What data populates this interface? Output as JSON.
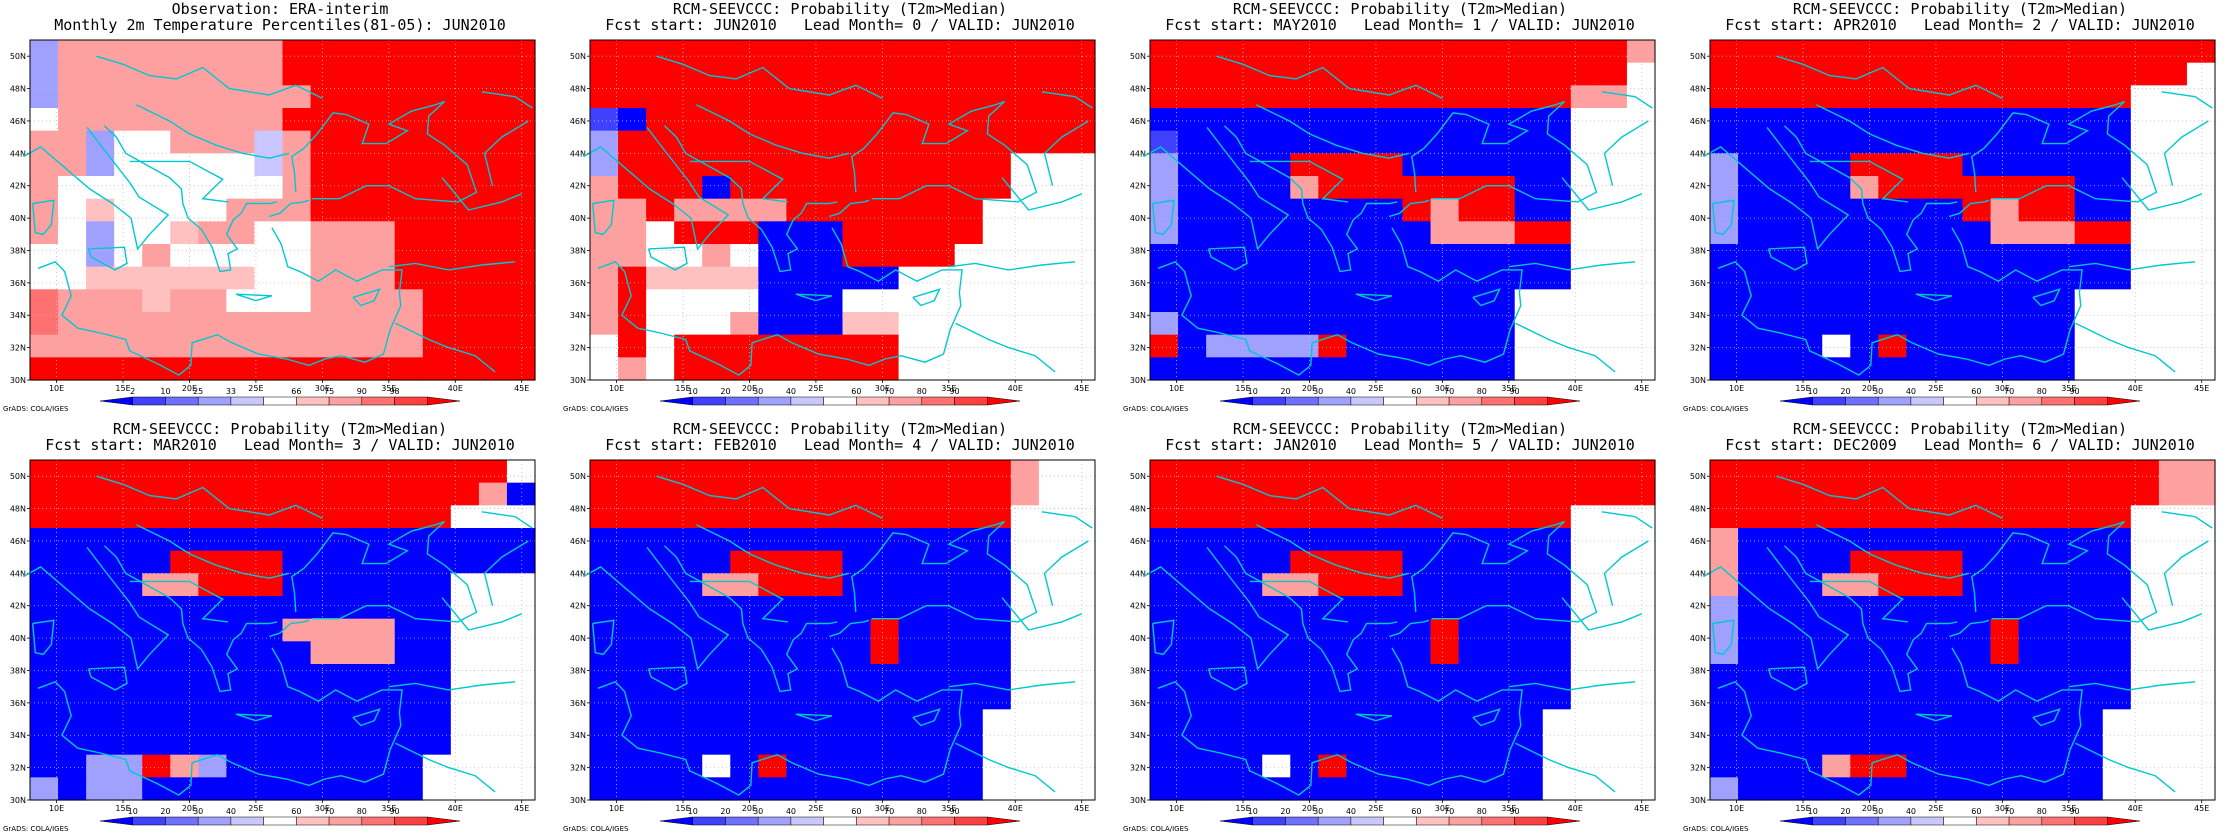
{
  "colors": {
    "deep_blue": "#0000ff",
    "mid_blue": "#4040ff",
    "blue_3": "#7070ff",
    "blue_2": "#a0a0ff",
    "light_blue": "#c8c8ff",
    "white": "#ffffff",
    "light_red": "#ffc0c0",
    "red_2": "#ffa0a0",
    "red_3": "#ff7070",
    "mid_red": "#ff4040",
    "deep_red": "#ff0000",
    "coast": "#00c8d0",
    "grid": "#c0c0c0"
  },
  "chart_data": [
    {
      "type": "heatmap",
      "title": "Observation: ERA-interim",
      "subtitle": "Monthly 2m Temperature Percentiles(81-05): JUN2010",
      "x_ticks": [
        "10E",
        "15E",
        "20E",
        "25E",
        "30E",
        "35E",
        "40E",
        "45E"
      ],
      "y_ticks": [
        "30N",
        "32N",
        "34N",
        "36N",
        "38N",
        "40N",
        "42N",
        "44N",
        "46N",
        "48N",
        "50N"
      ],
      "xlim": [
        8,
        46
      ],
      "ylim": [
        30,
        51
      ],
      "grid": "dotted",
      "colorbar_labels": [
        "2",
        "10",
        "25",
        "33",
        "66",
        "75",
        "90",
        "98"
      ],
      "credit": "GrADS: COLA/IGES",
      "rows_north_to_south": [
        "355555555999999999",
        "355555555999999999",
        "355555555599999999",
        "055555555999999999",
        "553005554599999999",
        "553000004599999999",
        "500000000599999999",
        "507000055599999999",
        "503007550055599999",
        "003050000055599999",
        "007777770055599999",
        "655575500055559999",
        "655555555555559999",
        "555555555555559999",
        "999999999999999999"
      ]
    },
    {
      "type": "heatmap",
      "title": "RCM-SEEVCCC: Probability (T2m>Median)",
      "subtitle": "Fcst start: JUN2010   Lead Month= 0 / VALID: JUN2010",
      "x_ticks": [
        "10E",
        "15E",
        "20E",
        "25E",
        "30E",
        "35E",
        "40E",
        "45E"
      ],
      "y_ticks": [
        "30N",
        "32N",
        "34N",
        "36N",
        "38N",
        "40N",
        "42N",
        "44N",
        "46N",
        "48N",
        "50N"
      ],
      "xlim": [
        8,
        46
      ],
      "ylim": [
        30,
        51
      ],
      "grid": "dotted",
      "colorbar_labels": [
        "10",
        "20",
        "30",
        "40",
        "60",
        "70",
        "80",
        "90"
      ],
      "credit": "GrADS: COLA/IGES",
      "rows_north_to_south": [
        "999999999999999999",
        "999999999999999999",
        "999999999999999999",
        "219999999999999999",
        "399999999999999999",
        "399999999999999000",
        "599919999999999000",
        "559555599999990000",
        "550999111999990000",
        "550050111999900000",
        "597777111110000000",
        "590000111000000000",
        "590005111770000000",
        "090999999990000000",
        "050999999990000000"
      ]
    },
    {
      "type": "heatmap",
      "title": "RCM-SEEVCCC: Probability (T2m>Median)",
      "subtitle": "Fcst start: MAY2010   Lead Month= 1 / VALID: JUN2010",
      "x_ticks": [
        "10E",
        "15E",
        "20E",
        "25E",
        "30E",
        "35E",
        "40E",
        "45E"
      ],
      "y_ticks": [
        "30N",
        "32N",
        "34N",
        "36N",
        "38N",
        "40N",
        "42N",
        "44N",
        "46N",
        "48N",
        "50N"
      ],
      "xlim": [
        8,
        46
      ],
      "ylim": [
        30,
        51
      ],
      "grid": "dotted",
      "colorbar_labels": [
        "10",
        "20",
        "30",
        "40",
        "60",
        "70",
        "80",
        "90"
      ],
      "credit": "GrADS: COLA/IGES",
      "rows_north_to_south": [
        "999999999999999995",
        "999999999999999990",
        "999999999999999550",
        "111111111111111000",
        "211111111111111000",
        "311119999111111000",
        "311115999999911000",
        "311111111959911000",
        "311111111155599000",
        "111111111111111000",
        "111111111111111000",
        "111111111111100000",
        "311111111111100000",
        "913333911111100000",
        "111111111111100000"
      ]
    },
    {
      "type": "heatmap",
      "title": "RCM-SEEVCCC: Probability (T2m>Median)",
      "subtitle": "Fcst start: APR2010   Lead Month= 2 / VALID: JUN2010",
      "x_ticks": [
        "10E",
        "15E",
        "20E",
        "25E",
        "30E",
        "35E",
        "40E",
        "45E"
      ],
      "y_ticks": [
        "30N",
        "32N",
        "34N",
        "36N",
        "38N",
        "40N",
        "42N",
        "44N",
        "46N",
        "48N",
        "50N"
      ],
      "xlim": [
        8,
        46
      ],
      "ylim": [
        30,
        51
      ],
      "grid": "dotted",
      "colorbar_labels": [
        "10",
        "20",
        "30",
        "40",
        "60",
        "70",
        "80",
        "90"
      ],
      "credit": "GrADS: COLA/IGES",
      "rows_north_to_south": [
        "999999999999999999",
        "999999999999999990",
        "999999999999999000",
        "111111111111111000",
        "111111111111111000",
        "311119999111111000",
        "311115999999911000",
        "311111111959911000",
        "311111111155599000",
        "111111111111111000",
        "111111111111111000",
        "111111111111100000",
        "111111111111100000",
        "111101911111100000",
        "111111111111100000"
      ]
    },
    {
      "type": "heatmap",
      "title": "RCM-SEEVCCC: Probability (T2m>Median)",
      "subtitle": "Fcst start: MAR2010   Lead Month= 3 / VALID: JUN2010",
      "x_ticks": [
        "10E",
        "15E",
        "20E",
        "25E",
        "30E",
        "35E",
        "40E",
        "45E"
      ],
      "y_ticks": [
        "30N",
        "32N",
        "34N",
        "36N",
        "38N",
        "40N",
        "42N",
        "44N",
        "46N",
        "48N",
        "50N"
      ],
      "xlim": [
        8,
        46
      ],
      "ylim": [
        30,
        51
      ],
      "grid": "dotted",
      "colorbar_labels": [
        "10",
        "20",
        "30",
        "40",
        "60",
        "70",
        "80",
        "90"
      ],
      "credit": "GrADS: COLA/IGES",
      "rows_north_to_south": [
        "999999999999999990",
        "999999999999999951",
        "999999999999999000",
        "111111111111111111",
        "111119999111111111",
        "111155999111111000",
        "111111111111111000",
        "111111111555511000",
        "111111111155511000",
        "111111111111111000",
        "111111111111111000",
        "111111111111111000",
        "111111111111111000",
        "113395311111110000",
        "313311111111110000"
      ]
    },
    {
      "type": "heatmap",
      "title": "RCM-SEEVCCC: Probability (T2m>Median)",
      "subtitle": "Fcst start: FEB2010   Lead Month= 4 / VALID: JUN2010",
      "x_ticks": [
        "10E",
        "15E",
        "20E",
        "25E",
        "30E",
        "35E",
        "40E",
        "45E"
      ],
      "y_ticks": [
        "30N",
        "32N",
        "34N",
        "36N",
        "38N",
        "40N",
        "42N",
        "44N",
        "46N",
        "48N",
        "50N"
      ],
      "xlim": [
        8,
        46
      ],
      "ylim": [
        30,
        51
      ],
      "grid": "dotted",
      "colorbar_labels": [
        "10",
        "20",
        "30",
        "40",
        "60",
        "70",
        "80",
        "90"
      ],
      "credit": "GrADS: COLA/IGES",
      "rows_north_to_south": [
        "999999999999999500",
        "999999999999999500",
        "999999999999999000",
        "111111111111111000",
        "111119999111111000",
        "111155999111111000",
        "111111111111111000",
        "111111111191111000",
        "111111111191111000",
        "111111111111111000",
        "111111111111111000",
        "111111111111110000",
        "111111111111110000",
        "111101911111110000",
        "111111111111110000"
      ]
    },
    {
      "type": "heatmap",
      "title": "RCM-SEEVCCC: Probability (T2m>Median)",
      "subtitle": "Fcst start: JAN2010   Lead Month= 5 / VALID: JUN2010",
      "x_ticks": [
        "10E",
        "15E",
        "20E",
        "25E",
        "30E",
        "35E",
        "40E",
        "45E"
      ],
      "y_ticks": [
        "30N",
        "32N",
        "34N",
        "36N",
        "38N",
        "40N",
        "42N",
        "44N",
        "46N",
        "48N",
        "50N"
      ],
      "xlim": [
        8,
        46
      ],
      "ylim": [
        30,
        51
      ],
      "grid": "dotted",
      "colorbar_labels": [
        "10",
        "20",
        "30",
        "40",
        "60",
        "70",
        "80",
        "90"
      ],
      "credit": "GrADS: COLA/IGES",
      "rows_north_to_south": [
        "999999999999999999",
        "999999999999999999",
        "999999999999999000",
        "111111111111111000",
        "111119999111111000",
        "111155999111111000",
        "111111111111111000",
        "111111111191111000",
        "111111111191111000",
        "111111111111111000",
        "111111111111111000",
        "111111111111110000",
        "111111111111110000",
        "111101911111110000",
        "111111111111110000"
      ]
    },
    {
      "type": "heatmap",
      "title": "RCM-SEEVCCC: Probability (T2m>Median)",
      "subtitle": "Fcst start: DEC2009   Lead Month= 6 / VALID: JUN2010",
      "x_ticks": [
        "10E",
        "15E",
        "20E",
        "25E",
        "30E",
        "35E",
        "40E",
        "45E"
      ],
      "y_ticks": [
        "30N",
        "32N",
        "34N",
        "36N",
        "38N",
        "40N",
        "42N",
        "44N",
        "46N",
        "48N",
        "50N"
      ],
      "xlim": [
        8,
        46
      ],
      "ylim": [
        30,
        51
      ],
      "grid": "dotted",
      "colorbar_labels": [
        "10",
        "20",
        "30",
        "40",
        "60",
        "70",
        "80",
        "90"
      ],
      "credit": "GrADS: COLA/IGES",
      "rows_north_to_south": [
        "999999999999999955",
        "999999999999999955",
        "999999999999999000",
        "511111111111111000",
        "511119999111111000",
        "511155999111111000",
        "311111111111111000",
        "311111111191111000",
        "311111111191111000",
        "111111111111111000",
        "111111111111111000",
        "111111111111110000",
        "111111111111110000",
        "111159911111110000",
        "311111111111110000"
      ]
    }
  ]
}
